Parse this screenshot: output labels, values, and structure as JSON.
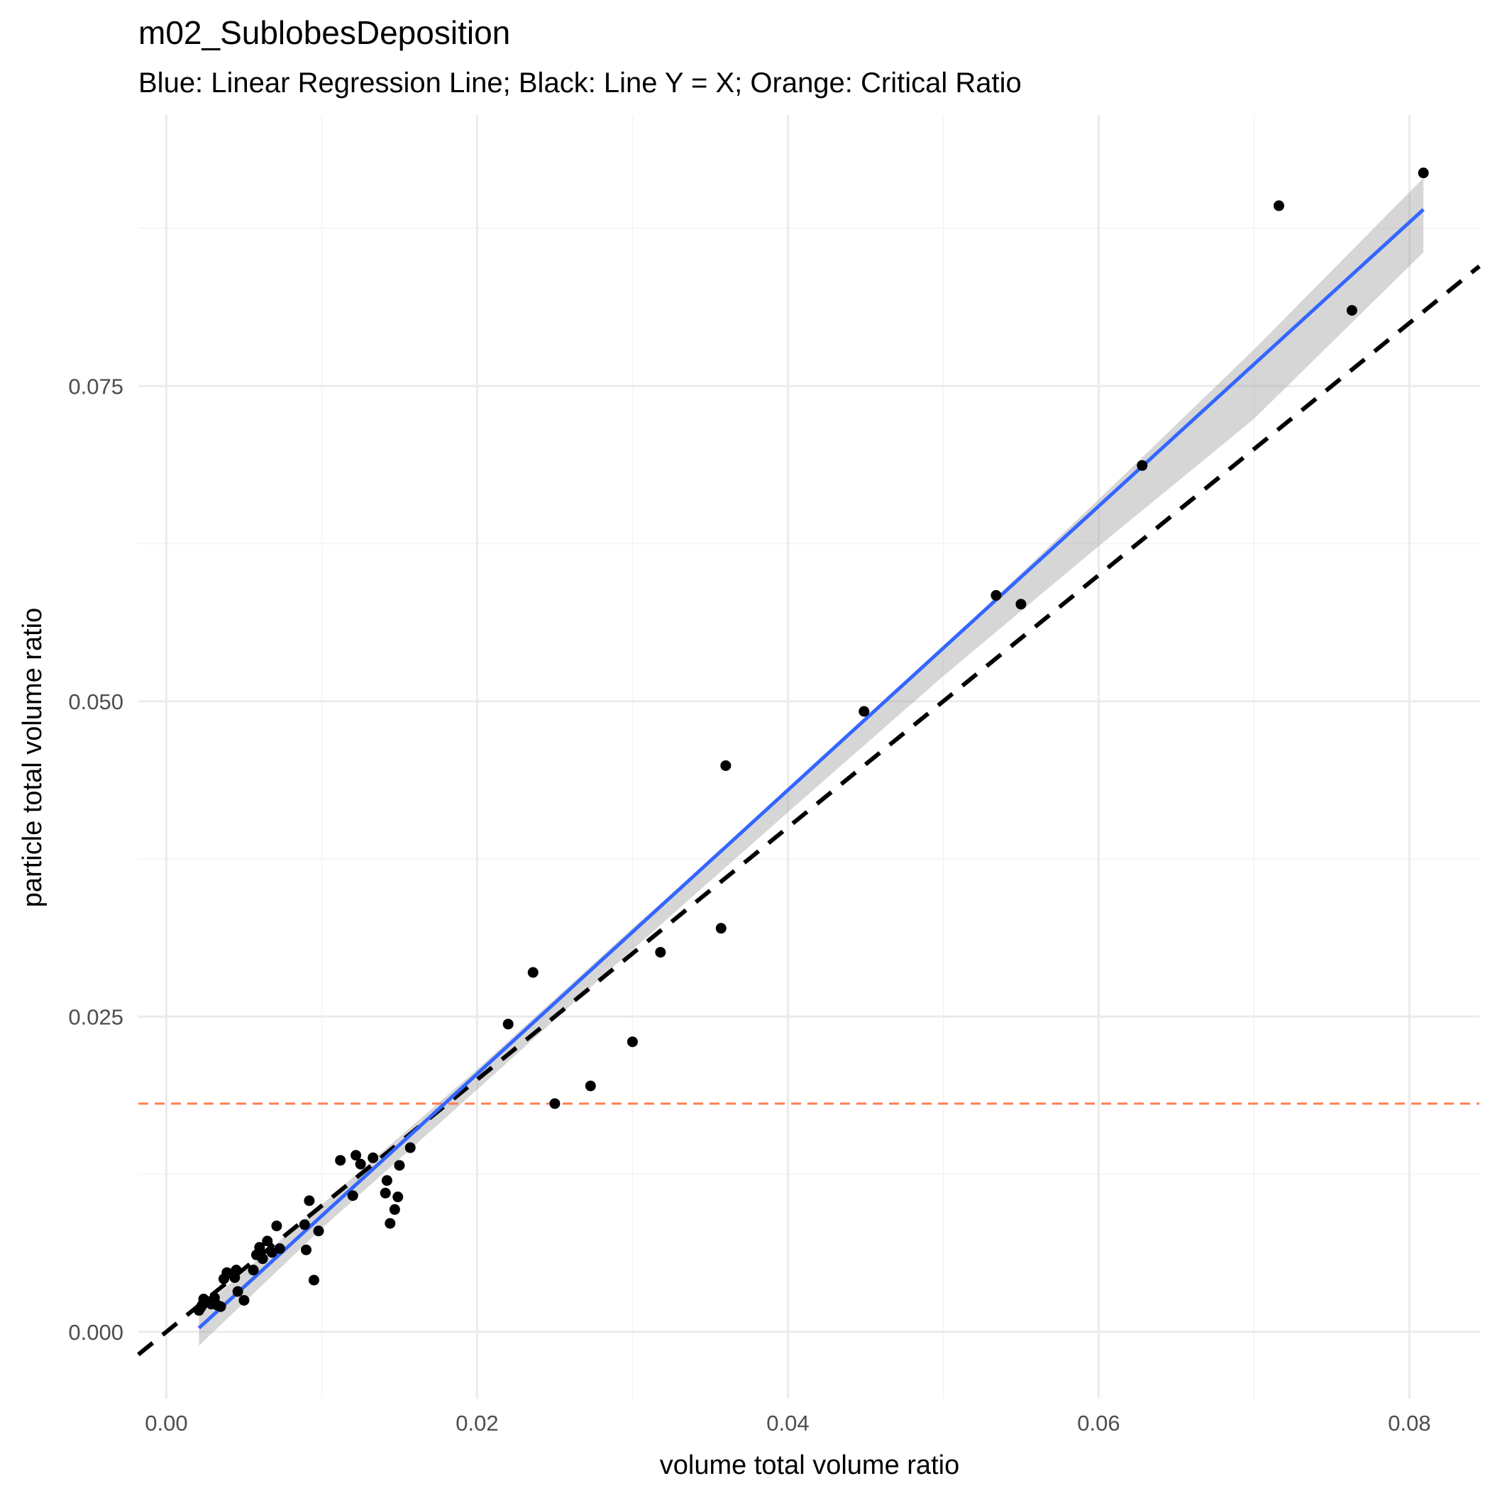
{
  "chart_data": {
    "type": "scatter",
    "title": "m02_SublobesDeposition",
    "subtitle": "Blue: Linear Regression Line;  Black: Line Y = X; Orange: Critical Ratio",
    "xlabel": "volume total volume ratio",
    "ylabel": "particle total volume ratio",
    "xlim": [
      -0.0018,
      0.0845
    ],
    "ylim": [
      -0.0053,
      0.0965
    ],
    "x_ticks": [
      0.0,
      0.02,
      0.04,
      0.06,
      0.08
    ],
    "x_tick_labels": [
      "0.00",
      "0.02",
      "0.04",
      "0.06",
      "0.08"
    ],
    "y_ticks": [
      0.0,
      0.025,
      0.05,
      0.075
    ],
    "y_tick_labels": [
      "0.000",
      "0.025",
      "0.050",
      "0.075"
    ],
    "grid": true,
    "colors": {
      "points": "#000000",
      "regression": "#3366ff",
      "confidence_band": "#999999",
      "identity_line": "#000000",
      "critical_ratio": "#ff7f50",
      "grid_major": "#ebebeb",
      "grid_minor": "#f5f5f5"
    },
    "points": [
      {
        "x": 0.0021,
        "y": 0.0017
      },
      {
        "x": 0.0022,
        "y": 0.0019
      },
      {
        "x": 0.0023,
        "y": 0.0021
      },
      {
        "x": 0.0024,
        "y": 0.0026
      },
      {
        "x": 0.0027,
        "y": 0.0024
      },
      {
        "x": 0.0029,
        "y": 0.0022
      },
      {
        "x": 0.0031,
        "y": 0.0027
      },
      {
        "x": 0.0033,
        "y": 0.0021
      },
      {
        "x": 0.0035,
        "y": 0.002
      },
      {
        "x": 0.0037,
        "y": 0.0042
      },
      {
        "x": 0.0039,
        "y": 0.0047
      },
      {
        "x": 0.0042,
        "y": 0.0046
      },
      {
        "x": 0.0044,
        "y": 0.0043
      },
      {
        "x": 0.0046,
        "y": 0.0032
      },
      {
        "x": 0.0045,
        "y": 0.0049
      },
      {
        "x": 0.005,
        "y": 0.0025
      },
      {
        "x": 0.0056,
        "y": 0.0049
      },
      {
        "x": 0.0058,
        "y": 0.0061
      },
      {
        "x": 0.006,
        "y": 0.0067
      },
      {
        "x": 0.0062,
        "y": 0.0058
      },
      {
        "x": 0.0065,
        "y": 0.0072
      },
      {
        "x": 0.0068,
        "y": 0.0063
      },
      {
        "x": 0.0071,
        "y": 0.0084
      },
      {
        "x": 0.0073,
        "y": 0.0066
      },
      {
        "x": 0.0089,
        "y": 0.0085
      },
      {
        "x": 0.009,
        "y": 0.0065
      },
      {
        "x": 0.0092,
        "y": 0.0104
      },
      {
        "x": 0.0095,
        "y": 0.0041
      },
      {
        "x": 0.0098,
        "y": 0.008
      },
      {
        "x": 0.0112,
        "y": 0.0136
      },
      {
        "x": 0.012,
        "y": 0.0108
      },
      {
        "x": 0.0122,
        "y": 0.014
      },
      {
        "x": 0.0125,
        "y": 0.0133
      },
      {
        "x": 0.0133,
        "y": 0.0138
      },
      {
        "x": 0.0141,
        "y": 0.011
      },
      {
        "x": 0.0142,
        "y": 0.012
      },
      {
        "x": 0.0144,
        "y": 0.0086
      },
      {
        "x": 0.0147,
        "y": 0.0097
      },
      {
        "x": 0.0149,
        "y": 0.0107
      },
      {
        "x": 0.015,
        "y": 0.0132
      },
      {
        "x": 0.0157,
        "y": 0.0146
      },
      {
        "x": 0.022,
        "y": 0.0244
      },
      {
        "x": 0.0236,
        "y": 0.0285
      },
      {
        "x": 0.025,
        "y": 0.0181
      },
      {
        "x": 0.0273,
        "y": 0.0195
      },
      {
        "x": 0.03,
        "y": 0.023
      },
      {
        "x": 0.0318,
        "y": 0.0301
      },
      {
        "x": 0.0357,
        "y": 0.032
      },
      {
        "x": 0.036,
        "y": 0.0449
      },
      {
        "x": 0.0449,
        "y": 0.0492
      },
      {
        "x": 0.0534,
        "y": 0.0584
      },
      {
        "x": 0.055,
        "y": 0.0577
      },
      {
        "x": 0.0628,
        "y": 0.0687
      },
      {
        "x": 0.0716,
        "y": 0.0893
      },
      {
        "x": 0.0763,
        "y": 0.081
      },
      {
        "x": 0.0809,
        "y": 0.0919
      }
    ],
    "regression_line": {
      "x": [
        0.0021,
        0.0809
      ],
      "y": [
        0.0003,
        0.089
      ]
    },
    "confidence_band": {
      "x": [
        0.0021,
        0.01,
        0.02,
        0.03,
        0.04,
        0.05,
        0.06,
        0.07,
        0.0809
      ],
      "upper": [
        0.0017,
        0.0101,
        0.0208,
        0.032,
        0.0429,
        0.0543,
        0.066,
        0.0779,
        0.0915
      ],
      "lower": [
        -0.0011,
        0.0082,
        0.0192,
        0.0303,
        0.0412,
        0.052,
        0.0623,
        0.0724,
        0.0856
      ]
    },
    "identity_line": {
      "x": [
        -0.0018,
        0.0845
      ],
      "y": [
        -0.0018,
        0.0845
      ]
    },
    "critical_ratio": {
      "y": 0.0181
    }
  }
}
